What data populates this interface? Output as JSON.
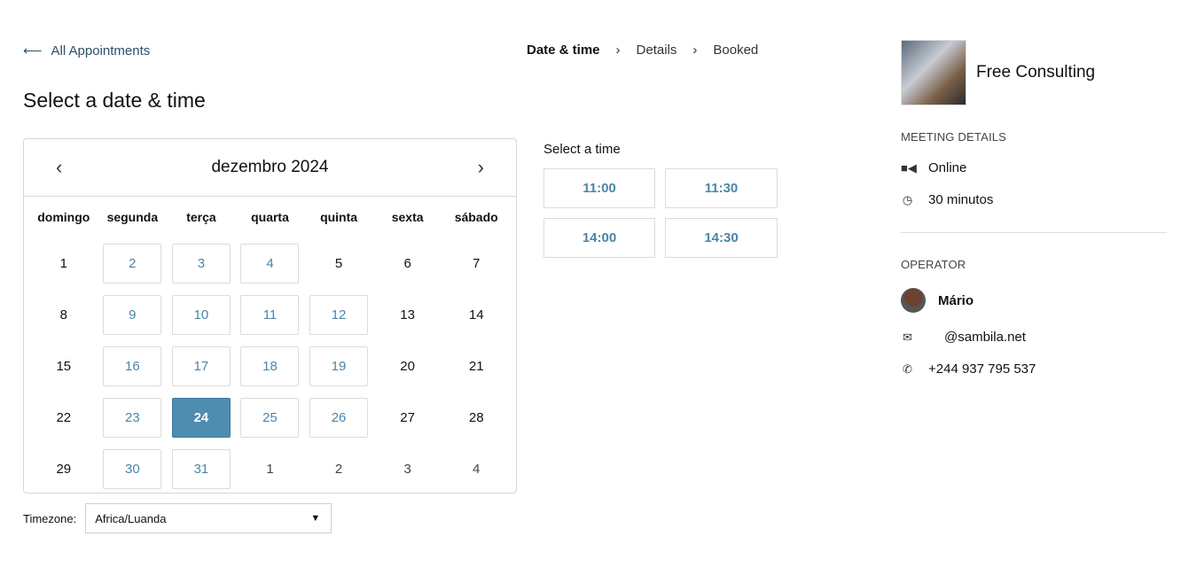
{
  "nav": {
    "back_label": "All Appointments",
    "steps": [
      "Date & time",
      "Details",
      "Booked"
    ]
  },
  "title": "Select a date & time",
  "calendar": {
    "month": "dezembro 2024",
    "weekdays": [
      "domingo",
      "segunda",
      "terça",
      "quarta",
      "quinta",
      "sexta",
      "sábado"
    ],
    "weeks": [
      [
        {
          "d": "1"
        },
        {
          "d": "2",
          "a": 1
        },
        {
          "d": "3",
          "a": 1
        },
        {
          "d": "4",
          "a": 1
        },
        {
          "d": "5"
        },
        {
          "d": "6"
        },
        {
          "d": "7"
        }
      ],
      [
        {
          "d": "8"
        },
        {
          "d": "9",
          "a": 1
        },
        {
          "d": "10",
          "a": 1
        },
        {
          "d": "11",
          "a": 1
        },
        {
          "d": "12",
          "a": 1
        },
        {
          "d": "13"
        },
        {
          "d": "14"
        }
      ],
      [
        {
          "d": "15"
        },
        {
          "d": "16",
          "a": 1
        },
        {
          "d": "17",
          "a": 1
        },
        {
          "d": "18",
          "a": 1
        },
        {
          "d": "19",
          "a": 1
        },
        {
          "d": "20"
        },
        {
          "d": "21"
        }
      ],
      [
        {
          "d": "22"
        },
        {
          "d": "23",
          "a": 1
        },
        {
          "d": "24",
          "a": 1,
          "s": 1
        },
        {
          "d": "25",
          "a": 1
        },
        {
          "d": "26",
          "a": 1
        },
        {
          "d": "27"
        },
        {
          "d": "28"
        }
      ],
      [
        {
          "d": "29"
        },
        {
          "d": "30",
          "a": 1
        },
        {
          "d": "31",
          "a": 1
        },
        {
          "d": "1",
          "o": 1
        },
        {
          "d": "2",
          "o": 1
        },
        {
          "d": "3",
          "o": 1
        },
        {
          "d": "4",
          "o": 1
        }
      ]
    ],
    "selected": "24"
  },
  "timezone": {
    "label": "Timezone:",
    "value": "Africa/Luanda"
  },
  "times": {
    "label": "Select a time",
    "slots": [
      "11:00",
      "11:30",
      "14:00",
      "14:30"
    ]
  },
  "sidebar": {
    "service": "Free Consulting",
    "meeting_header": "MEETING DETAILS",
    "location": "Online",
    "duration": "30 minutos",
    "operator_header": "OPERATOR",
    "operator_name": "Mário",
    "email": "@sambila.net",
    "phone": "+244 937 795 537"
  },
  "colors": {
    "accent": "#4e8cb0",
    "link": "#4a86a8"
  }
}
